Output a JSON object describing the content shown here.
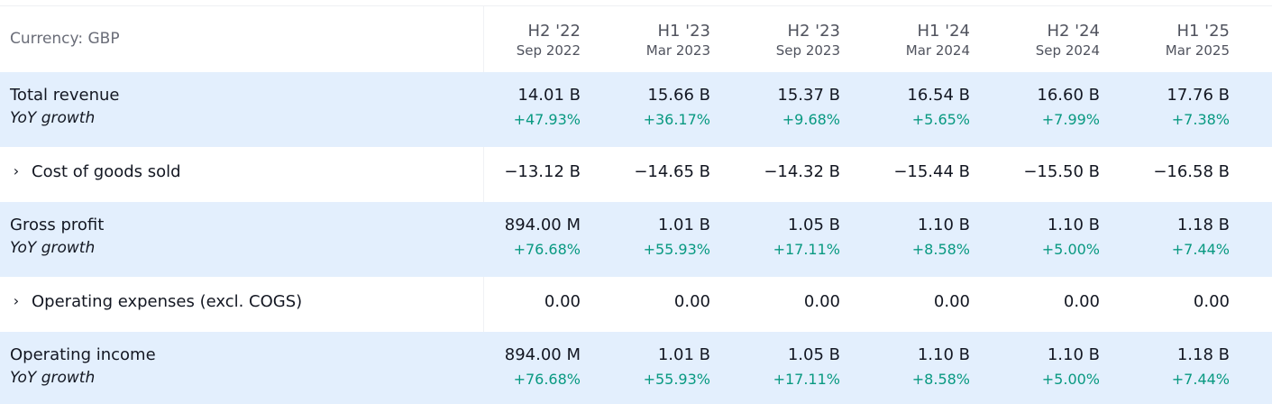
{
  "header": {
    "currency_label": "Currency: GBP",
    "periods": [
      {
        "title": "H2 '22",
        "date": "Sep 2022"
      },
      {
        "title": "H1 '23",
        "date": "Mar 2023"
      },
      {
        "title": "H2 '23",
        "date": "Sep 2023"
      },
      {
        "title": "H1 '24",
        "date": "Mar 2024"
      },
      {
        "title": "H2 '24",
        "date": "Sep 2024"
      },
      {
        "title": "H1 '25",
        "date": "Mar 2025"
      }
    ]
  },
  "rows": [
    {
      "label": "Total revenue",
      "sub_label": "YoY growth",
      "values": [
        "14.01 B",
        "15.66 B",
        "15.37 B",
        "16.54 B",
        "16.60 B",
        "17.76 B"
      ],
      "growth": [
        "+47.93%",
        "+36.17%",
        "+9.68%",
        "+5.65%",
        "+7.99%",
        "+7.38%"
      ]
    },
    {
      "label": "Cost of goods sold",
      "expand_icon": "chevron-right-icon",
      "values": [
        "−13.12 B",
        "−14.65 B",
        "−14.32 B",
        "−15.44 B",
        "−15.50 B",
        "−16.58 B"
      ]
    },
    {
      "label": "Gross profit",
      "sub_label": "YoY growth",
      "values": [
        "894.00 M",
        "1.01 B",
        "1.05 B",
        "1.10 B",
        "1.10 B",
        "1.18 B"
      ],
      "growth": [
        "+76.68%",
        "+55.93%",
        "+17.11%",
        "+8.58%",
        "+5.00%",
        "+7.44%"
      ]
    },
    {
      "label": "Operating expenses (excl. COGS)",
      "expand_icon": "chevron-right-icon",
      "values": [
        "0.00",
        "0.00",
        "0.00",
        "0.00",
        "0.00",
        "0.00"
      ]
    },
    {
      "label": "Operating income",
      "sub_label": "YoY growth",
      "values": [
        "894.00 M",
        "1.01 B",
        "1.05 B",
        "1.10 B",
        "1.10 B",
        "1.18 B"
      ],
      "growth": [
        "+76.68%",
        "+55.93%",
        "+17.11%",
        "+8.58%",
        "+5.00%",
        "+7.44%"
      ]
    }
  ],
  "colors": {
    "highlight_row": "#e3effd",
    "growth_positive": "#089981",
    "header_text": "#50535e"
  }
}
